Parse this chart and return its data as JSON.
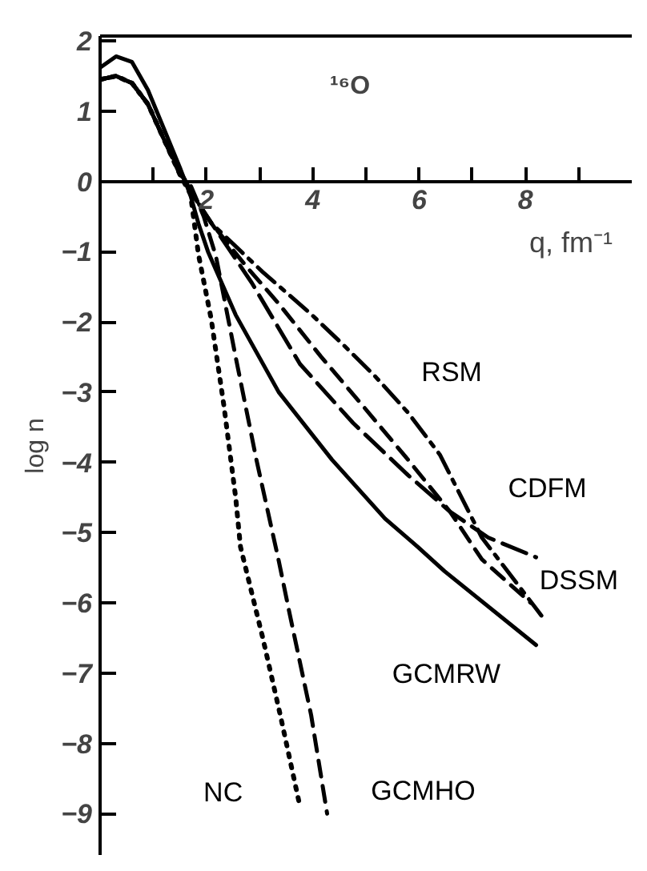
{
  "chart_data": {
    "type": "line",
    "title": "¹⁶O",
    "xlabel": "q, fm⁻¹",
    "ylabel": "log n",
    "xlim": [
      0,
      10
    ],
    "ylim": [
      -9.6,
      2.07
    ],
    "xticks": [
      {
        "value": 1,
        "label": null
      },
      2,
      {
        "value": 3,
        "label": null
      },
      4,
      {
        "value": 5,
        "label": null
      },
      6,
      {
        "value": 7,
        "label": null
      },
      8,
      {
        "value": 9,
        "label": null
      }
    ],
    "yticks": [
      -9,
      -8,
      -7,
      -6,
      -5,
      -4,
      -3,
      -2,
      -1,
      0,
      1,
      2
    ],
    "grid": false,
    "series": [
      {
        "name": "NC",
        "color": "#000000",
        "line_style": "dotted",
        "x": [
          0,
          0.3,
          0.6,
          0.9,
          1.2,
          1.5,
          1.7,
          1.85,
          2.09,
          2.33,
          2.55,
          2.64,
          3.06,
          3.39,
          3.76
        ],
        "values": [
          1.45,
          1.5,
          1.4,
          1.1,
          0.6,
          0.1,
          -0.18,
          -1.04,
          -1.96,
          -3.2,
          -4.5,
          -5.2,
          -6.5,
          -7.6,
          -8.9
        ]
      },
      {
        "name": "GCMHO",
        "color": "#000000",
        "line_style": "dashed",
        "x": [
          0,
          0.3,
          0.6,
          0.9,
          1.2,
          1.5,
          1.7,
          1.95,
          2.18,
          2.55,
          2.94,
          3.36,
          3.55,
          3.97,
          4.27
        ],
        "values": [
          1.45,
          1.5,
          1.4,
          1.1,
          0.6,
          0.1,
          -0.05,
          -0.5,
          -1.07,
          -2.5,
          -3.96,
          -5.4,
          -6.1,
          -7.6,
          -9.0
        ]
      },
      {
        "name": "GCMRW",
        "color": "#000000",
        "line_style": "solid",
        "x": [
          0,
          0.3,
          0.6,
          0.9,
          1.2,
          1.5,
          1.7,
          1.85,
          2.03,
          2.55,
          3.36,
          4.36,
          5.36,
          5.97,
          6.48,
          8.2
        ],
        "values": [
          1.62,
          1.78,
          1.7,
          1.3,
          0.75,
          0.2,
          -0.2,
          -0.6,
          -1.0,
          -1.9,
          -3.0,
          -3.96,
          -4.8,
          -5.2,
          -5.55,
          -6.6
        ]
      },
      {
        "name": "DSSM",
        "color": "#000000",
        "line_style": "dashed",
        "x": [
          0,
          0.3,
          0.6,
          0.9,
          1.2,
          1.5,
          1.75,
          2.1,
          2.76,
          3.36,
          4.15,
          4.97,
          5.79,
          6.58,
          7.18,
          8.1
        ],
        "values": [
          1.45,
          1.5,
          1.4,
          1.1,
          0.6,
          0.15,
          -0.2,
          -0.6,
          -1.22,
          -1.74,
          -2.49,
          -3.22,
          -3.96,
          -4.7,
          -5.38,
          -6.0
        ]
      },
      {
        "name": "CDFM",
        "color": "#000000",
        "line_style": "longdash",
        "x": [
          0,
          0.3,
          0.6,
          0.9,
          1.2,
          1.5,
          1.75,
          2.1,
          2.85,
          3.76,
          4.76,
          5.79,
          6.58,
          7.3,
          8.2
        ],
        "values": [
          1.45,
          1.5,
          1.4,
          1.1,
          0.6,
          0.15,
          -0.2,
          -0.6,
          -1.44,
          -2.6,
          -3.44,
          -4.18,
          -4.7,
          -5.07,
          -5.35
        ]
      },
      {
        "name": "RSM",
        "color": "#000000",
        "line_style": "dashdot",
        "x": [
          0,
          0.3,
          0.6,
          0.9,
          1.2,
          1.5,
          1.75,
          2.1,
          3.06,
          3.97,
          4.58,
          5.18,
          5.79,
          6.39,
          7.18,
          8.3
        ],
        "values": [
          1.45,
          1.5,
          1.4,
          1.1,
          0.6,
          0.15,
          -0.2,
          -0.6,
          -1.29,
          -1.89,
          -2.33,
          -2.78,
          -3.29,
          -3.89,
          -5.07,
          -6.18
        ]
      }
    ]
  }
}
